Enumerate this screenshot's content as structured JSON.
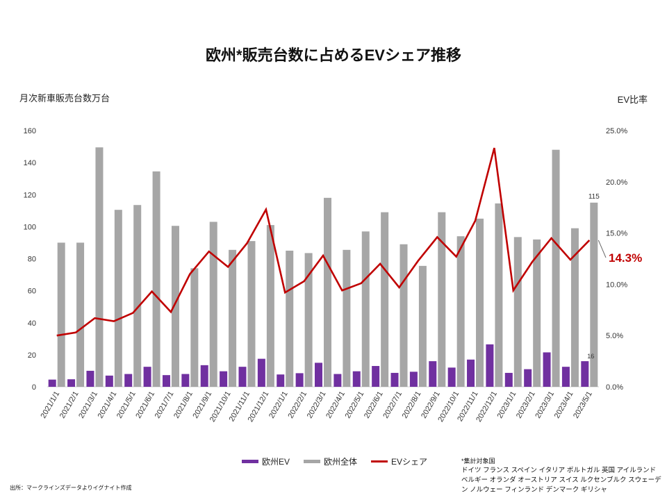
{
  "chart_data": {
    "type": "bar+line",
    "title": "欧州*販売台数に占めるEVシェア推移",
    "ylabel_left": "月次新車販売台数万台",
    "ylabel_right": "EV比率",
    "ylim_left": [
      0,
      160
    ],
    "yticks_left": [
      "0",
      "20",
      "40",
      "60",
      "80",
      "100",
      "120",
      "140",
      "160"
    ],
    "ylim_right": [
      0,
      0.25
    ],
    "yticks_right": [
      "0.0%",
      "5.0%",
      "10.0%",
      "15.0%",
      "20.0%",
      "25.0%"
    ],
    "categories": [
      "2021/1/1",
      "2021/2/1",
      "2021/3/1",
      "2021/4/1",
      "2021/5/1",
      "2021/6/1",
      "2021/7/1",
      "2021/8/1",
      "2021/9/1",
      "2021/10/1",
      "2021/11/1",
      "2021/12/1",
      "2022/1/1",
      "2022/2/1",
      "2022/3/1",
      "2022/4/1",
      "2022/5/1",
      "2022/6/1",
      "2022/7/1",
      "2022/8/1",
      "2022/9/1",
      "2022/10/1",
      "2022/11/1",
      "2022/12/1",
      "2023/1/1",
      "2023/2/1",
      "2023/3/1",
      "2023/4/1",
      "2023/5/1"
    ],
    "series": [
      {
        "name": "欧州EV",
        "kind": "bar",
        "axis": "left",
        "color": "#7030a0",
        "values": [
          4.5,
          4.7,
          10,
          7,
          8,
          12.5,
          7.3,
          8,
          13.5,
          9.7,
          12.5,
          17.5,
          7.7,
          8.5,
          15,
          8,
          9.7,
          13,
          8.7,
          9.4,
          16,
          12,
          17,
          26.5,
          8.7,
          11,
          21.5,
          12.5,
          16
        ]
      },
      {
        "name": "欧州全体",
        "kind": "bar",
        "axis": "left",
        "color": "#a6a6a6",
        "values": [
          90,
          90,
          149.5,
          110.5,
          113.5,
          134.5,
          100.5,
          74,
          103,
          85.5,
          91,
          101,
          85,
          83.5,
          118,
          85.5,
          97,
          109,
          89,
          75.5,
          109,
          94,
          105,
          114.5,
          93.5,
          92,
          148,
          99,
          115
        ]
      },
      {
        "name": "EVシェア",
        "kind": "line",
        "axis": "right",
        "color": "#c00000",
        "values": [
          0.05,
          0.053,
          0.067,
          0.064,
          0.072,
          0.093,
          0.073,
          0.11,
          0.132,
          0.117,
          0.14,
          0.173,
          0.092,
          0.103,
          0.128,
          0.094,
          0.101,
          0.12,
          0.097,
          0.123,
          0.146,
          0.127,
          0.162,
          0.233,
          0.094,
          0.122,
          0.145,
          0.124,
          0.143
        ]
      }
    ],
    "data_labels": {
      "total_last": "115",
      "ev_last": "16",
      "share_last": "14.3%"
    },
    "legend_position": "bottom"
  },
  "legend": {
    "ev": "欧州EV",
    "total": "欧州全体",
    "share": "EVシェア"
  },
  "note": {
    "head": "*集計対象国",
    "body": "ドイツ フランス スペイン イタリア ポルトガル 英国 アイルランド ベルギー オランダ オーストリア スイス ルクセンブルク スウェーデン ノルウェー フィンランド デンマーク ギリシャ"
  },
  "source": "出所：マークラインズデータよりイグナイト作成",
  "colors": {
    "ev": "#7030a0",
    "total": "#a6a6a6",
    "share": "#c00000"
  }
}
